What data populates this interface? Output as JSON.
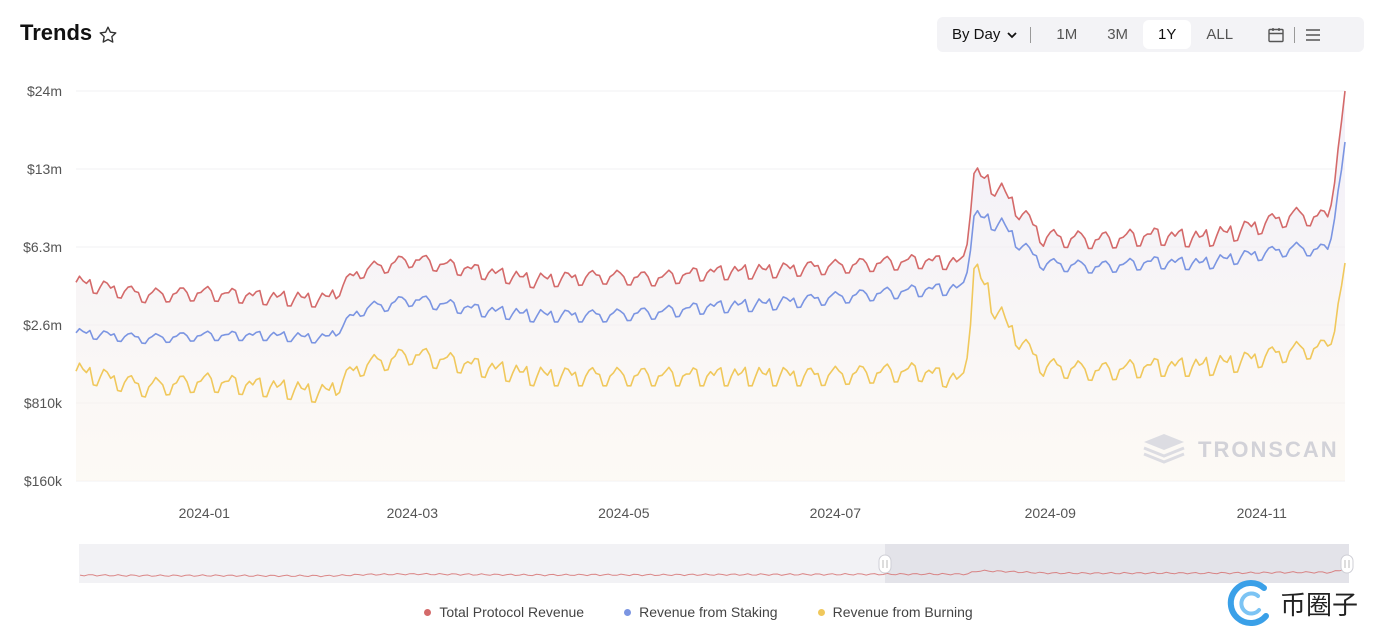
{
  "header": {
    "title": "Trends"
  },
  "toolbar": {
    "interval": "By Day",
    "ranges": [
      "1M",
      "3M",
      "1Y",
      "ALL"
    ],
    "active_range": "1Y"
  },
  "watermark": "TRONSCAN",
  "brand": "币圈子",
  "colors": {
    "total": "#d46a6a",
    "staking": "#7b95e2",
    "burning": "#f0c85c",
    "active_bg": "#ffffff"
  },
  "chart_data": {
    "type": "line",
    "y_scale": "log",
    "y_ticks": [
      "$24m",
      "$13m",
      "$6.3m",
      "$2.6m",
      "$810k",
      "$160k"
    ],
    "x_ticks": [
      "2024-01",
      "2024-03",
      "2024-05",
      "2024-07",
      "2024-09",
      "2024-11"
    ],
    "x": [
      "2023-11-25",
      "2023-12-15",
      "2024-01-01",
      "2024-01-20",
      "2024-02-05",
      "2024-02-15",
      "2024-03-01",
      "2024-03-20",
      "2024-04-05",
      "2024-04-25",
      "2024-05-10",
      "2024-05-25",
      "2024-06-10",
      "2024-06-25",
      "2024-07-10",
      "2024-07-25",
      "2024-08-07",
      "2024-08-10",
      "2024-08-18",
      "2024-08-30",
      "2024-09-15",
      "2024-10-01",
      "2024-10-15",
      "2024-10-25",
      "2024-11-10",
      "2024-11-20",
      "2024-11-25"
    ],
    "series": [
      {
        "name": "Total Protocol Revenue",
        "values": [
          4.4,
          3.8,
          3.9,
          3.7,
          3.6,
          5.0,
          5.7,
          5.0,
          4.5,
          4.7,
          4.6,
          4.9,
          5.0,
          5.2,
          5.4,
          5.6,
          5.5,
          13.0,
          11.0,
          7.2,
          7.0,
          7.3,
          7.1,
          7.6,
          8.8,
          8.6,
          24.0
        ]
      },
      {
        "name": "Revenue from Staking",
        "values": [
          2.4,
          2.2,
          2.3,
          2.3,
          2.2,
          3.2,
          3.6,
          3.2,
          3.0,
          3.0,
          3.1,
          3.3,
          3.4,
          3.6,
          3.8,
          4.0,
          4.1,
          8.7,
          8.0,
          5.4,
          5.2,
          5.5,
          5.4,
          5.8,
          6.4,
          6.3,
          16.0
        ]
      },
      {
        "name": "Revenue from Burning",
        "values": [
          1.4,
          1.1,
          1.2,
          1.1,
          1.0,
          1.5,
          1.8,
          1.5,
          1.3,
          1.3,
          1.3,
          1.3,
          1.3,
          1.3,
          1.35,
          1.4,
          1.2,
          5.3,
          3.0,
          1.5,
          1.4,
          1.5,
          1.5,
          1.6,
          1.9,
          2.0,
          5.2
        ]
      }
    ]
  }
}
